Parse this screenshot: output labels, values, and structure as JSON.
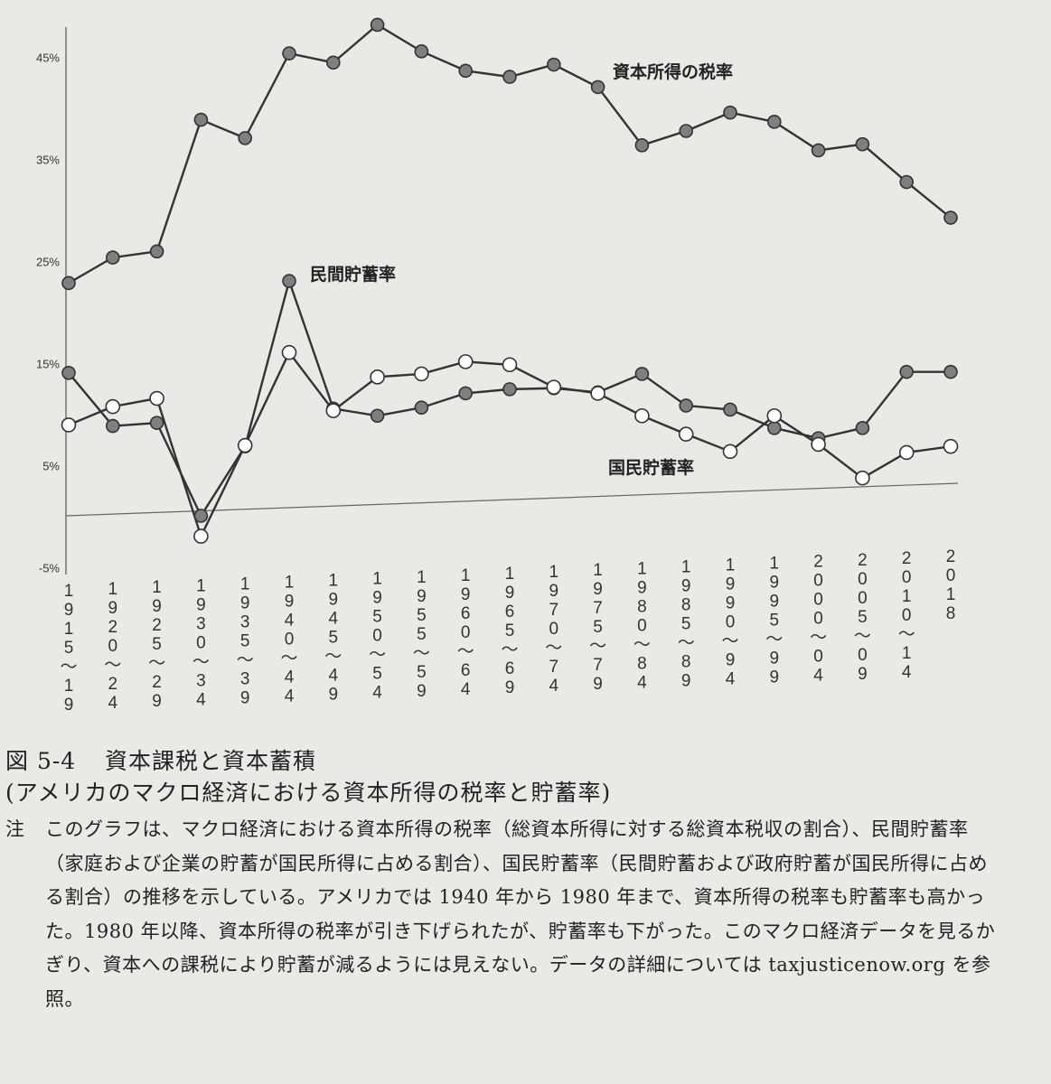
{
  "chart_data": {
    "type": "line",
    "title": "",
    "xlabel": "",
    "ylabel": "",
    "ylim": [
      -5,
      47
    ],
    "y_ticks": [
      "45%",
      "35%",
      "25%",
      "15%",
      "5%",
      "-5%"
    ],
    "y_tick_values": [
      45,
      35,
      25,
      15,
      5,
      -5
    ],
    "x_labels": [
      "1915~19",
      "1920~24",
      "1925~29",
      "1930~34",
      "1935~39",
      "1940~44",
      "1945~49",
      "1950~54",
      "1955~59",
      "1960~64",
      "1965~69",
      "1970~74",
      "1975~79",
      "1980~84",
      "1985~89",
      "1990~94",
      "1995~99",
      "2000~04",
      "2005~09",
      "2010~14",
      "2018"
    ],
    "series": [
      {
        "name": "資本所得の税率",
        "marker": "filled",
        "values": [
          22.8,
          25.3,
          25.9,
          38.8,
          37.0,
          45.3,
          44.4,
          48.1,
          45.5,
          43.6,
          43.0,
          44.2,
          42.0,
          36.3,
          37.7,
          39.5,
          38.6,
          35.8,
          36.4,
          32.7,
          29.2
        ]
      },
      {
        "name": "民間貯蓄率",
        "marker": "filled",
        "values": [
          14.0,
          8.8,
          9.1,
          0.0,
          6.8,
          23.0,
          10.5,
          9.8,
          10.6,
          12.0,
          12.4,
          12.5,
          12.1,
          13.9,
          10.8,
          10.4,
          8.6,
          7.6,
          8.6,
          14.1,
          14.1
        ]
      },
      {
        "name": "国民貯蓄率",
        "marker": "open",
        "values": [
          8.9,
          10.7,
          11.5,
          -2.0,
          6.9,
          16.0,
          10.3,
          13.6,
          13.9,
          15.1,
          14.8,
          12.6,
          12.0,
          9.8,
          8.0,
          6.3,
          9.8,
          7.0,
          3.7,
          6.2,
          6.8
        ]
      }
    ],
    "legend": "inline labels",
    "grid": false,
    "colors": {
      "filled_marker": "#7f7f7f",
      "open_marker": "#ffffff",
      "line": "#333333"
    }
  },
  "caption": {
    "figure_number": "図 5-4",
    "title": "資本課税と資本蓄積",
    "subtitle": "(アメリカのマクロ経済における資本所得の税率と貯蓄率)",
    "note_mark": "注",
    "note": "このグラフは、マクロ経済における資本所得の税率（総資本所得に対する総資本税収の割合）、民間貯蓄率（家庭および企業の貯蓄が国民所得に占める割合）、国民貯蓄率（民間貯蓄および政府貯蓄が国民所得に占める割合）の推移を示している。アメリカでは 1940 年から 1980 年まで、資本所得の税率も貯蓄率も高かった。1980 年以降、資本所得の税率が引き下げられたが、貯蓄率も下がった。このマクロ経済データを見るかぎり、資本への課税により貯蓄が減るようには見えない。データの詳細については taxjusticenow.org を参照。"
  }
}
